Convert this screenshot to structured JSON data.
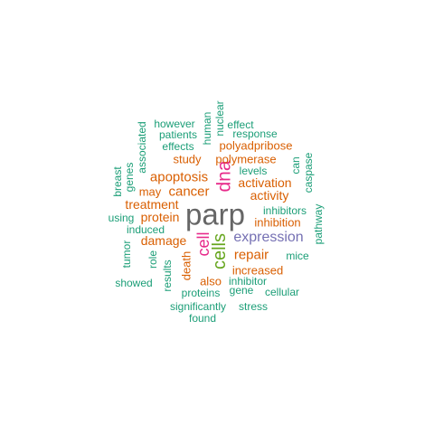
{
  "palette": {
    "teal": "#1b9e77",
    "orange": "#d95f02",
    "purple": "#7570b3",
    "magenta": "#e7298a",
    "green": "#66a61e",
    "gray": "#666666"
  },
  "words": [
    {
      "text": "parp",
      "color": "gray"
    },
    {
      "text": "dna",
      "color": "magenta"
    },
    {
      "text": "cells",
      "color": "green"
    },
    {
      "text": "cell",
      "color": "magenta"
    },
    {
      "text": "expression",
      "color": "purple"
    },
    {
      "text": "cancer",
      "color": "orange"
    },
    {
      "text": "apoptosis",
      "color": "orange"
    },
    {
      "text": "damage",
      "color": "orange"
    },
    {
      "text": "repair",
      "color": "orange"
    },
    {
      "text": "protein",
      "color": "orange"
    },
    {
      "text": "activity",
      "color": "orange"
    },
    {
      "text": "activation",
      "color": "orange"
    },
    {
      "text": "inhibition",
      "color": "orange"
    },
    {
      "text": "treatment",
      "color": "orange"
    },
    {
      "text": "increased",
      "color": "orange"
    },
    {
      "text": "polymerase",
      "color": "orange"
    },
    {
      "text": "polyadpribose",
      "color": "orange"
    },
    {
      "text": "study",
      "color": "orange"
    },
    {
      "text": "death",
      "color": "orange"
    },
    {
      "text": "may",
      "color": "orange"
    },
    {
      "text": "also",
      "color": "orange"
    },
    {
      "text": "inhibitors",
      "color": "teal"
    },
    {
      "text": "levels",
      "color": "teal"
    },
    {
      "text": "induced",
      "color": "teal"
    },
    {
      "text": "inhibitor",
      "color": "teal"
    },
    {
      "text": "proteins",
      "color": "teal"
    },
    {
      "text": "effects",
      "color": "teal"
    },
    {
      "text": "effect",
      "color": "teal"
    },
    {
      "text": "response",
      "color": "teal"
    },
    {
      "text": "patients",
      "color": "teal"
    },
    {
      "text": "however",
      "color": "teal"
    },
    {
      "text": "human",
      "color": "teal"
    },
    {
      "text": "nuclear",
      "color": "teal"
    },
    {
      "text": "associated",
      "color": "teal"
    },
    {
      "text": "genes",
      "color": "teal"
    },
    {
      "text": "breast",
      "color": "teal"
    },
    {
      "text": "using",
      "color": "teal"
    },
    {
      "text": "tumor",
      "color": "teal"
    },
    {
      "text": "role",
      "color": "teal"
    },
    {
      "text": "results",
      "color": "teal"
    },
    {
      "text": "showed",
      "color": "teal"
    },
    {
      "text": "significantly",
      "color": "teal"
    },
    {
      "text": "found",
      "color": "teal"
    },
    {
      "text": "stress",
      "color": "teal"
    },
    {
      "text": "gene",
      "color": "teal"
    },
    {
      "text": "cellular",
      "color": "teal"
    },
    {
      "text": "mice",
      "color": "teal"
    },
    {
      "text": "pathway",
      "color": "teal"
    },
    {
      "text": "caspase",
      "color": "teal"
    },
    {
      "text": "can",
      "color": "teal"
    }
  ]
}
